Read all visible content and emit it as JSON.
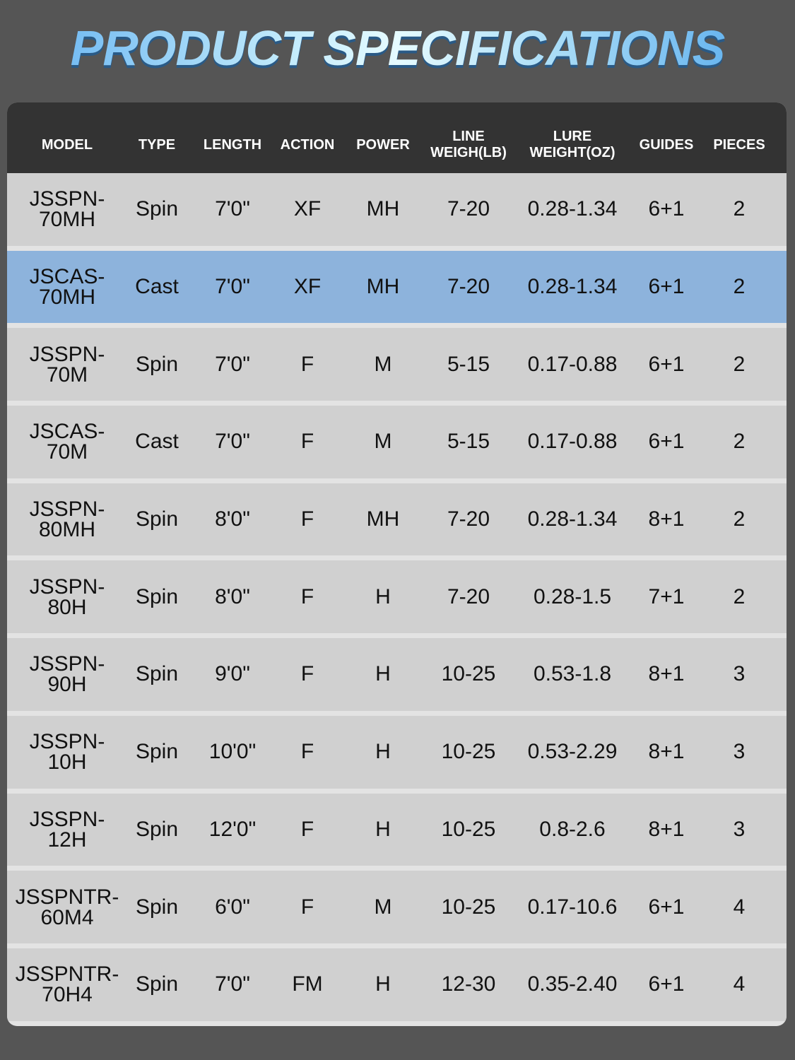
{
  "title": "PRODUCT SPECIFICATIONS",
  "colors": {
    "background": "#555555",
    "header": "#333333",
    "row": "#d0d0d0",
    "highlight_row": "#8db3dc"
  },
  "headers": [
    "MODEL",
    "TYPE",
    "LENGTH",
    "ACTION",
    "POWER",
    "LINE WEIGH(LB)",
    "LURE WEIGHT(OZ)",
    "GUIDES",
    "PIECES"
  ],
  "header_lines": {
    "line": [
      "LINE",
      "WEIGH(LB)"
    ],
    "lure": [
      "LURE",
      "WEIGHT(OZ)"
    ]
  },
  "rows": [
    {
      "model": [
        "JSSPN-",
        "70MH"
      ],
      "type": "Spin",
      "length": "7'0\"",
      "action": "XF",
      "power": "MH",
      "line": "7-20",
      "lure": "0.28-1.34",
      "guides": "6+1",
      "pieces": "2"
    },
    {
      "model": [
        "JSCAS-",
        "70MH"
      ],
      "type": "Cast",
      "length": "7'0\"",
      "action": "XF",
      "power": "MH",
      "line": "7-20",
      "lure": "0.28-1.34",
      "guides": "6+1",
      "pieces": "2",
      "highlighted": true
    },
    {
      "model": [
        "JSSPN-",
        "70M"
      ],
      "type": "Spin",
      "length": "7'0\"",
      "action": "F",
      "power": "M",
      "line": "5-15",
      "lure": "0.17-0.88",
      "guides": "6+1",
      "pieces": "2"
    },
    {
      "model": [
        "JSCAS-",
        "70M"
      ],
      "type": "Cast",
      "length": "7'0\"",
      "action": "F",
      "power": "M",
      "line": "5-15",
      "lure": "0.17-0.88",
      "guides": "6+1",
      "pieces": "2"
    },
    {
      "model": [
        "JSSPN-",
        "80MH"
      ],
      "type": "Spin",
      "length": "8'0\"",
      "action": "F",
      "power": "MH",
      "line": "7-20",
      "lure": "0.28-1.34",
      "guides": "8+1",
      "pieces": "2"
    },
    {
      "model": [
        "JSSPN-",
        "80H"
      ],
      "type": "Spin",
      "length": "8'0\"",
      "action": "F",
      "power": "H",
      "line": "7-20",
      "lure": "0.28-1.5",
      "guides": "7+1",
      "pieces": "2"
    },
    {
      "model": [
        "JSSPN-",
        "90H"
      ],
      "type": "Spin",
      "length": "9'0\"",
      "action": "F",
      "power": "H",
      "line": "10-25",
      "lure": "0.53-1.8",
      "guides": "8+1",
      "pieces": "3"
    },
    {
      "model": [
        "JSSPN-",
        "10H"
      ],
      "type": "Spin",
      "length": "10'0\"",
      "action": "F",
      "power": "H",
      "line": "10-25",
      "lure": "0.53-2.29",
      "guides": "8+1",
      "pieces": "3"
    },
    {
      "model": [
        "JSSPN-",
        "12H"
      ],
      "type": "Spin",
      "length": "12'0\"",
      "action": "F",
      "power": "H",
      "line": "10-25",
      "lure": "0.8-2.6",
      "guides": "8+1",
      "pieces": "3"
    },
    {
      "model": [
        "JSSPNTR-",
        "60M4"
      ],
      "type": "Spin",
      "length": "6'0\"",
      "action": "F",
      "power": "M",
      "line": "10-25",
      "lure": "0.17-10.6",
      "guides": "6+1",
      "pieces": "4"
    },
    {
      "model": [
        "JSSPNTR-",
        "70H4"
      ],
      "type": "Spin",
      "length": "7'0\"",
      "action": "FM",
      "power": "H",
      "line": "12-30",
      "lure": "0.35-2.40",
      "guides": "6+1",
      "pieces": "4"
    }
  ]
}
